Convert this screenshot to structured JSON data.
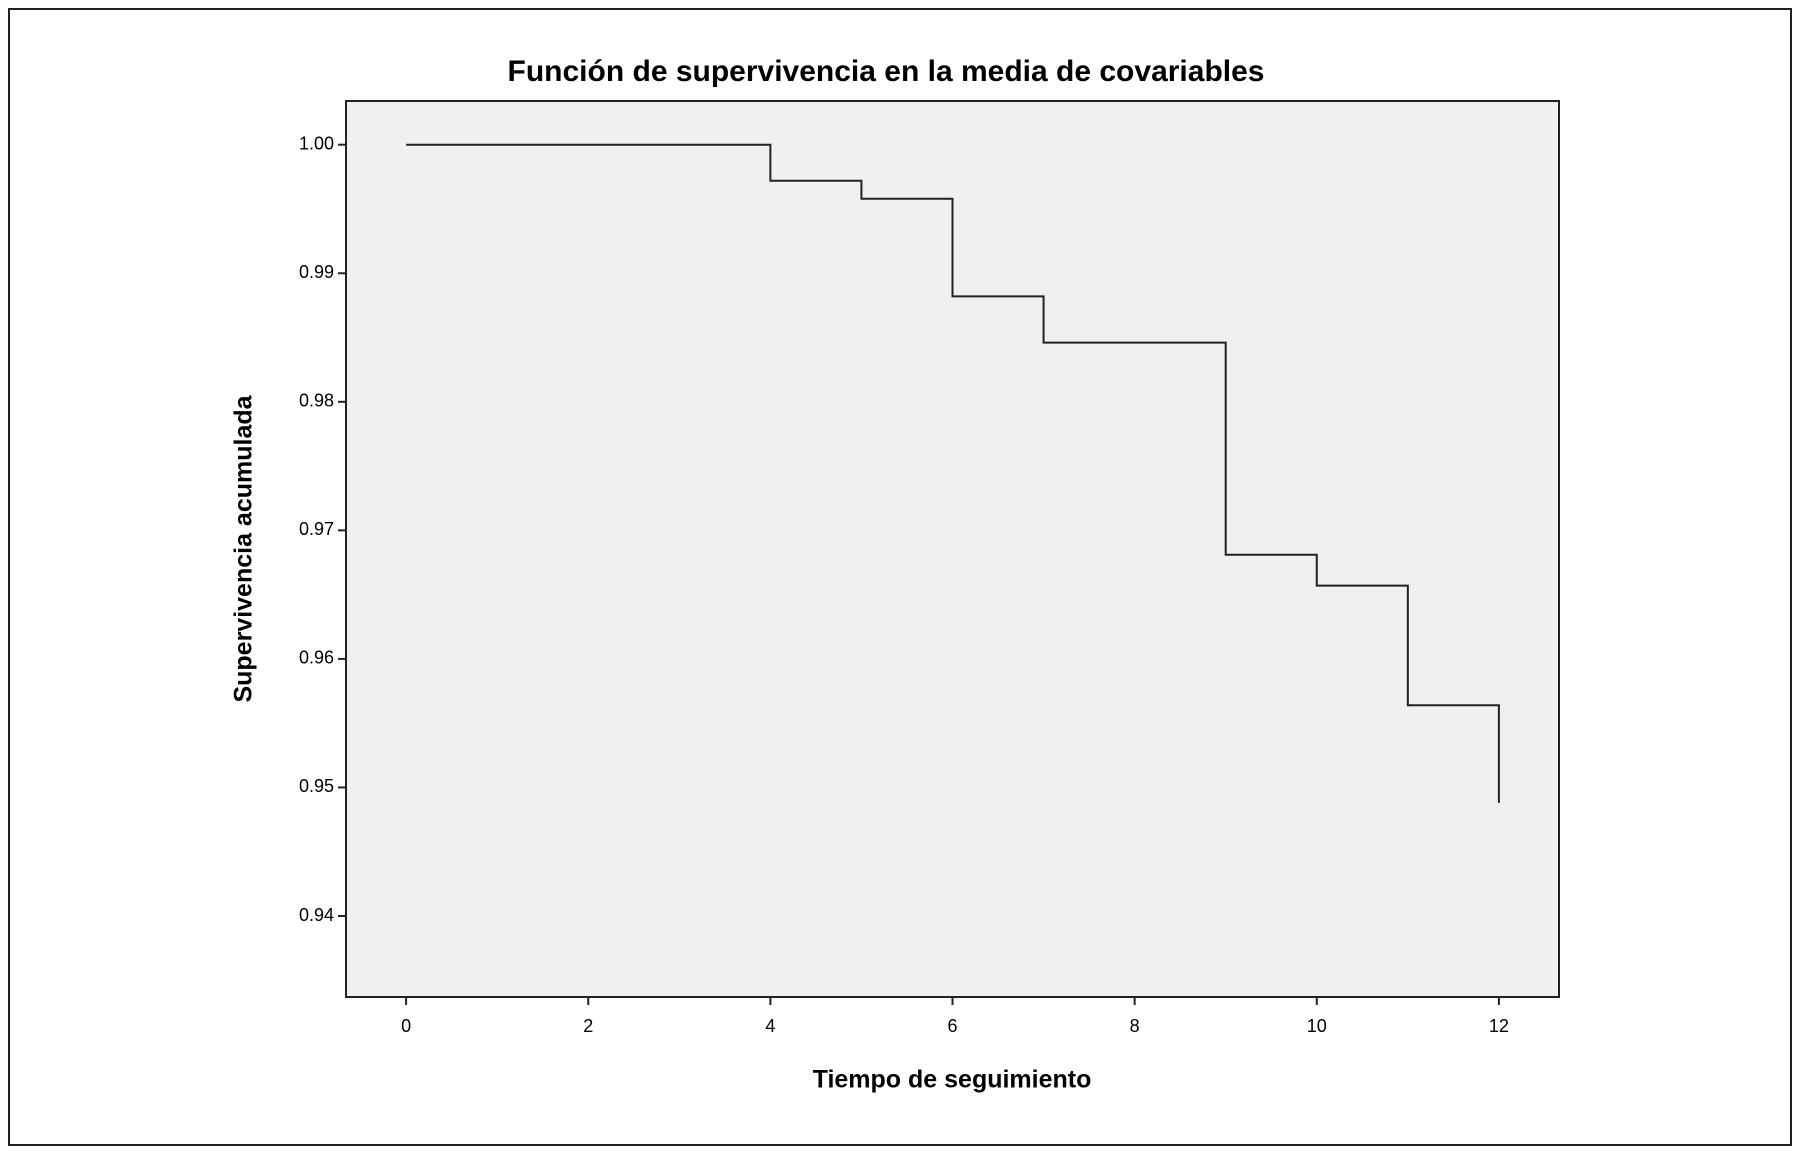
{
  "chart_data": {
    "type": "line",
    "step": "post",
    "title": "Función de supervivencia en la media de covariables",
    "x_label": "Tiempo de seguimiento",
    "y_label": "Supervivencia acumulada",
    "x": [
      0,
      4,
      5,
      6,
      7,
      9,
      10,
      11,
      12
    ],
    "series": [
      {
        "color": "#222222",
        "values": [
          1.0,
          0.9972,
          0.9958,
          0.9882,
          0.9846,
          0.9681,
          0.9657,
          0.9564,
          0.9488
        ]
      }
    ],
    "xlim": [
      -0.66,
      12.66
    ],
    "xticks": [
      0,
      2,
      4,
      6,
      8,
      10,
      12
    ],
    "ylim": [
      0.9337,
      1.0034
    ],
    "yticks": [
      0.94,
      0.95,
      0.96,
      0.97,
      0.98,
      0.99,
      {
        "value": 1.0,
        "label": "1.00"
      }
    ],
    "plot_background": "#f0f0f0"
  }
}
